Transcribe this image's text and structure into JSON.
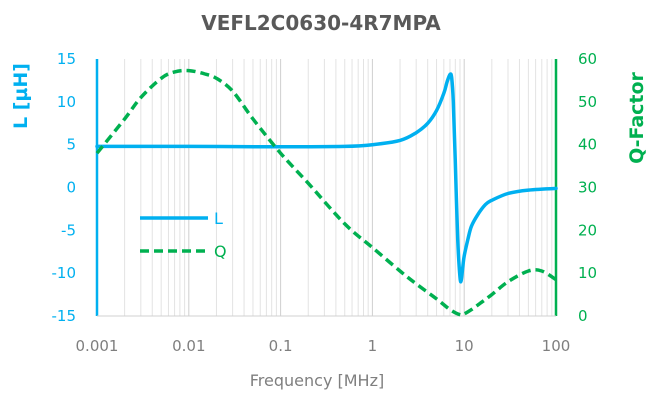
{
  "chart_data": {
    "type": "line",
    "title": "VEFL2C0630-4R7MPA",
    "xlabel": "Frequency [MHz]",
    "x_scale": "log",
    "xlim": [
      0.001,
      100
    ],
    "x_ticks": [
      "0.001",
      "0.01",
      "0.1",
      "1",
      "10",
      "100"
    ],
    "y_left": {
      "label": "L [µH]",
      "lim": [
        -15,
        15
      ],
      "ticks": [
        "15",
        "10",
        "5",
        "0",
        "-5",
        "-10",
        "-15"
      ],
      "color": "#00b0f0"
    },
    "y_right": {
      "label": "Q-Factor",
      "lim": [
        0,
        60
      ],
      "ticks": [
        "60",
        "50",
        "40",
        "30",
        "20",
        "10",
        "0"
      ],
      "color": "#00b050"
    },
    "grid": true,
    "legend": "center-left",
    "series": [
      {
        "name": "L",
        "axis": "left",
        "style": "solid",
        "color": "#00b0f0",
        "x": [
          0.001,
          0.01,
          0.1,
          0.5,
          1,
          2,
          3,
          4,
          5,
          6,
          6.5,
          7,
          7.3,
          7.6,
          8,
          8.5,
          9,
          9.3,
          9.6,
          10,
          11,
          12,
          14,
          17,
          20,
          30,
          50,
          100
        ],
        "y": [
          4.8,
          4.8,
          4.75,
          4.8,
          5.0,
          5.5,
          6.4,
          7.5,
          9.0,
          11.0,
          12.3,
          13.2,
          12.8,
          10.0,
          3.0,
          -6.0,
          -10.5,
          -10.8,
          -9.5,
          -8.0,
          -6.0,
          -4.5,
          -3.2,
          -2.0,
          -1.5,
          -0.7,
          -0.3,
          -0.1
        ]
      },
      {
        "name": "Q",
        "axis": "right",
        "style": "dashed",
        "color": "#00b050",
        "x": [
          0.001,
          0.002,
          0.003,
          0.005,
          0.007,
          0.01,
          0.015,
          0.02,
          0.03,
          0.05,
          0.1,
          0.2,
          0.5,
          1,
          2,
          3,
          5,
          7,
          9,
          10,
          12,
          15,
          20,
          30,
          50,
          70,
          100
        ],
        "y": [
          38,
          46,
          51,
          55.5,
          57,
          57.3,
          56.5,
          55.5,
          52.5,
          46,
          38,
          31,
          21.5,
          16,
          10.5,
          7.5,
          4,
          1.5,
          0.3,
          0.5,
          1.5,
          3,
          5,
          8,
          10.5,
          10.5,
          8.5
        ]
      }
    ]
  }
}
